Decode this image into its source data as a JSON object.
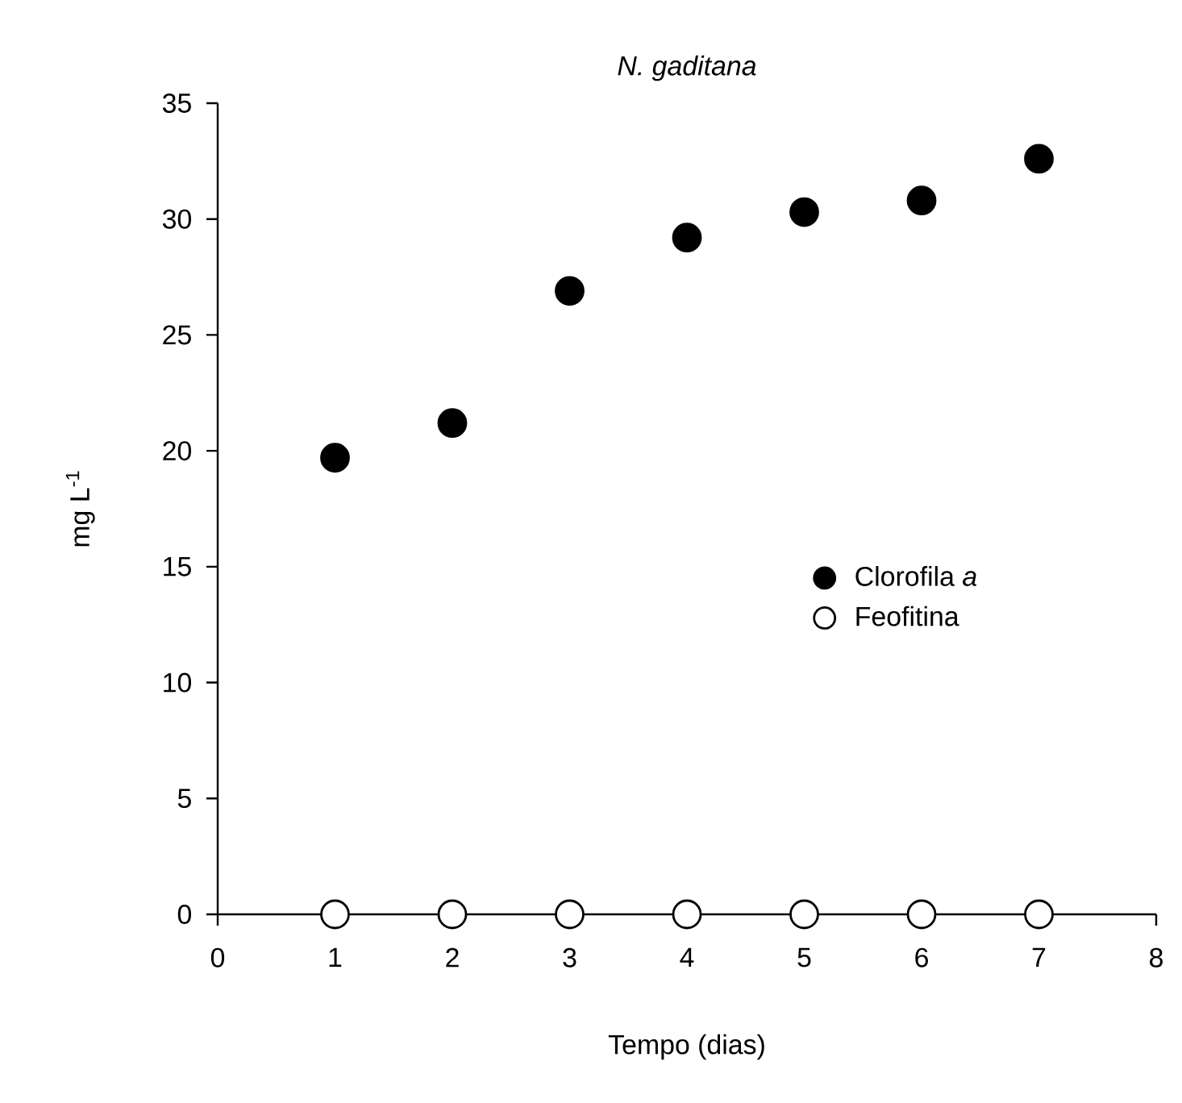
{
  "chart_data": {
    "type": "scatter",
    "title": "N. gaditana",
    "xlabel": "Tempo (dias)",
    "ylabel": "mg L$^{-1}$",
    "x": [
      1,
      2,
      3,
      4,
      5,
      6,
      7
    ],
    "series": [
      {
        "name": "Clorofila *a*",
        "color": "#000000",
        "values": [
          19.7,
          21.2,
          26.9,
          29.2,
          30.3,
          30.8,
          32.6
        ]
      },
      {
        "name": "Feofitina",
        "color": "#ffffff",
        "values": [
          0,
          0,
          0,
          0,
          0,
          0,
          0
        ]
      }
    ],
    "xlim": [
      0,
      8
    ],
    "ylim": [
      0,
      35
    ],
    "xticks": [
      0,
      1,
      2,
      3,
      4,
      5,
      6,
      7,
      8
    ],
    "yticks": [
      0,
      5,
      10,
      15,
      20,
      25,
      30,
      35
    ],
    "marker": "circle",
    "legend": "right",
    "grid": false
  }
}
